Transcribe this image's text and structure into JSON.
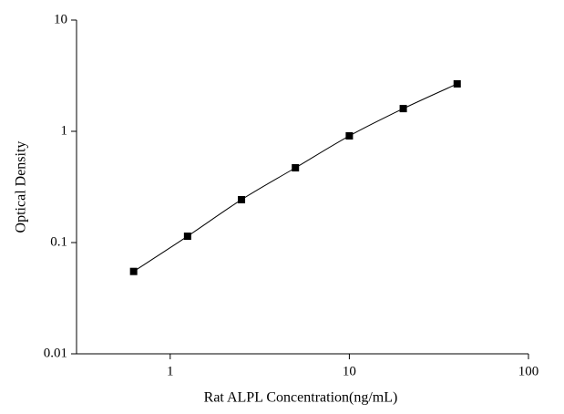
{
  "chart_data": {
    "type": "scatter",
    "x_label": "Rat ALPL Concentration(ng/mL)",
    "y_label": "Optical Density",
    "x_log": true,
    "y_log": true,
    "xlim": [
      0.3,
      100
    ],
    "ylim": [
      0.01,
      10
    ],
    "xticks": [
      1,
      10,
      100
    ],
    "yticks": [
      0.01,
      0.1,
      1,
      10
    ],
    "fit_curve": true,
    "series": [
      {
        "color": "#000000",
        "x": [
          0.625,
          1.25,
          2.5,
          5,
          10,
          20,
          40
        ],
        "values": [
          0.055,
          0.114,
          0.243,
          0.47,
          0.91,
          1.6,
          2.67
        ]
      }
    ]
  }
}
